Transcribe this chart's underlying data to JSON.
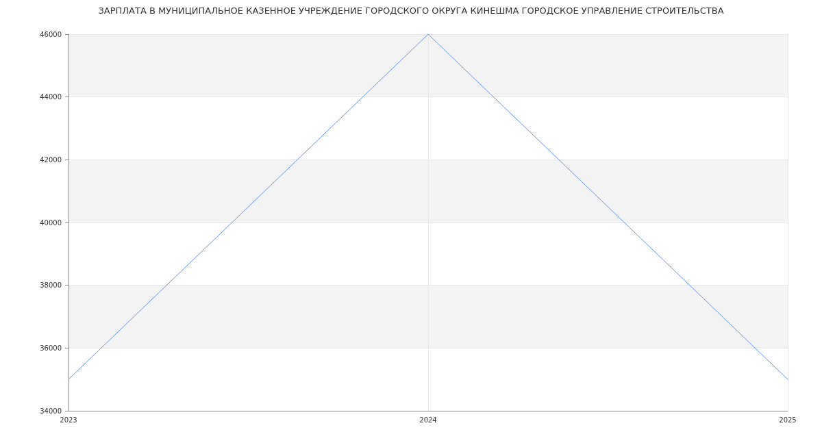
{
  "chart_data": {
    "type": "line",
    "title": "ЗАРПЛАТА В МУНИЦИПАЛЬНОЕ КАЗЕННОЕ УЧРЕЖДЕНИЕ ГОРОДСКОГО ОКРУГА КИНЕШМА ГОРОДСКОЕ УПРАВЛЕНИЕ СТРОИТЕЛЬСТВА",
    "x": [
      2023,
      2024,
      2025
    ],
    "series": [
      {
        "color": "#6495ed",
        "values": [
          35000,
          46000,
          35000
        ]
      }
    ],
    "xlim": [
      2023,
      2025
    ],
    "xticks": [
      2023,
      2024,
      2025
    ],
    "ylim": [
      34000,
      46000
    ],
    "yticks": [
      34000,
      36000,
      38000,
      40000,
      42000,
      44000,
      46000
    ],
    "grid": true,
    "marker": "none",
    "line_style": "solid"
  }
}
